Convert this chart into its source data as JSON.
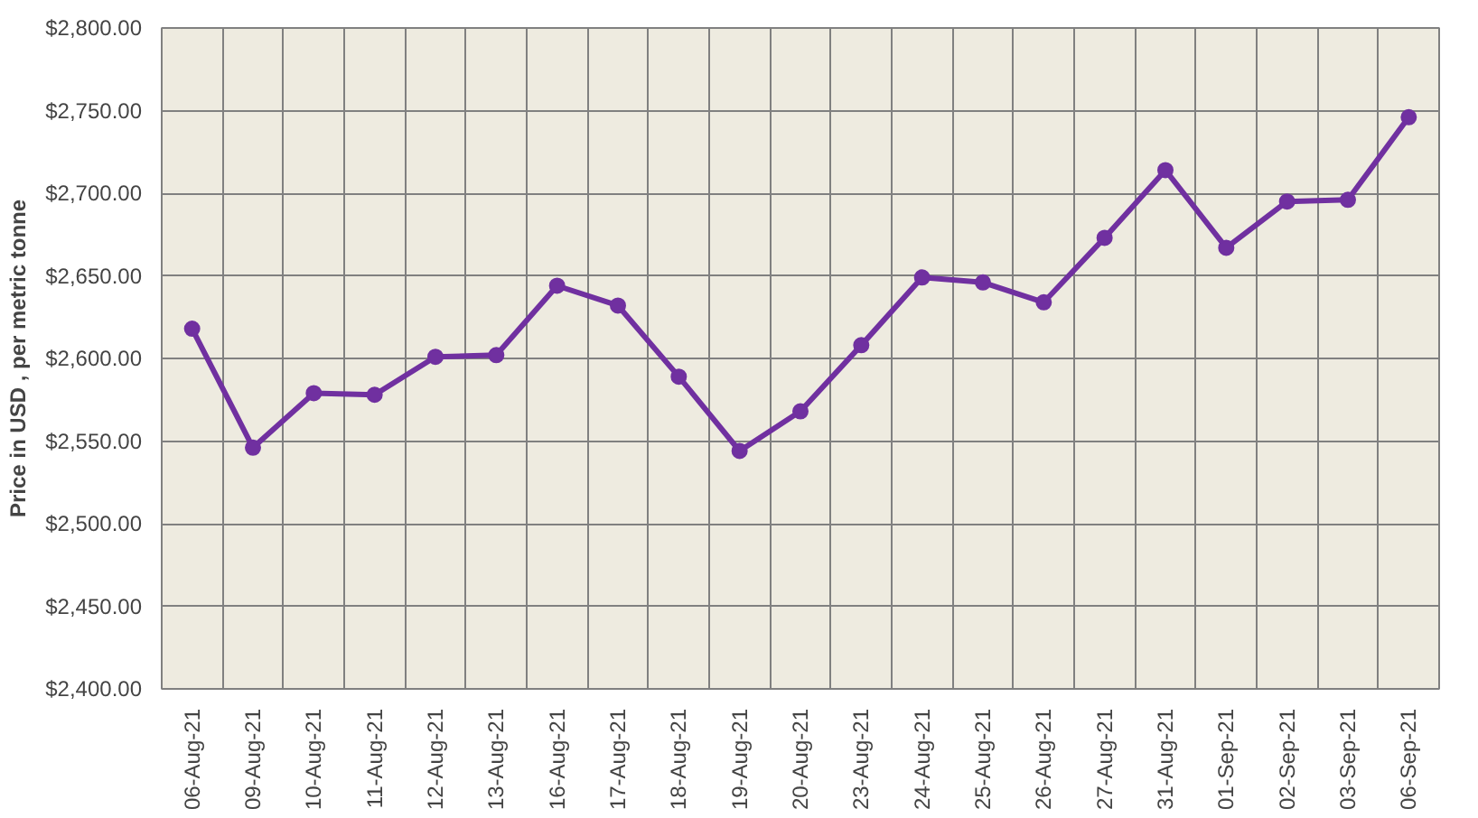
{
  "chart_data": {
    "type": "line",
    "ylabel": "Price in USD , per metric tonne",
    "categories": [
      "06-Aug-21",
      "09-Aug-21",
      "10-Aug-21",
      "11-Aug-21",
      "12-Aug-21",
      "13-Aug-21",
      "16-Aug-21",
      "17-Aug-21",
      "18-Aug-21",
      "19-Aug-21",
      "20-Aug-21",
      "23-Aug-21",
      "24-Aug-21",
      "25-Aug-21",
      "26-Aug-21",
      "27-Aug-21",
      "31-Aug-21",
      "01-Sep-21",
      "02-Sep-21",
      "03-Sep-21",
      "06-Sep-21"
    ],
    "series": [
      {
        "color": "#7030a0",
        "values": [
          2618,
          2546,
          2579,
          2578,
          2601,
          2602,
          2644,
          2632,
          2589,
          2544,
          2568,
          2608,
          2649,
          2646,
          2634,
          2673,
          2714,
          2667,
          2695,
          2696,
          2746
        ]
      }
    ],
    "ylim": [
      2400,
      2800
    ],
    "yticks": [
      {
        "value": 2400,
        "label": "$2,400.00"
      },
      {
        "value": 2450,
        "label": "$2,450.00"
      },
      {
        "value": 2500,
        "label": "$2,500.00"
      },
      {
        "value": 2550,
        "label": "$2,550.00"
      },
      {
        "value": 2600,
        "label": "$2,600.00"
      },
      {
        "value": 2650,
        "label": "$2,650.00"
      },
      {
        "value": 2700,
        "label": "$2,700.00"
      },
      {
        "value": 2750,
        "label": "$2,750.00"
      },
      {
        "value": 2800,
        "label": "$2,800.00"
      }
    ],
    "grid": true,
    "marker": "circle",
    "line_style": "solid"
  }
}
